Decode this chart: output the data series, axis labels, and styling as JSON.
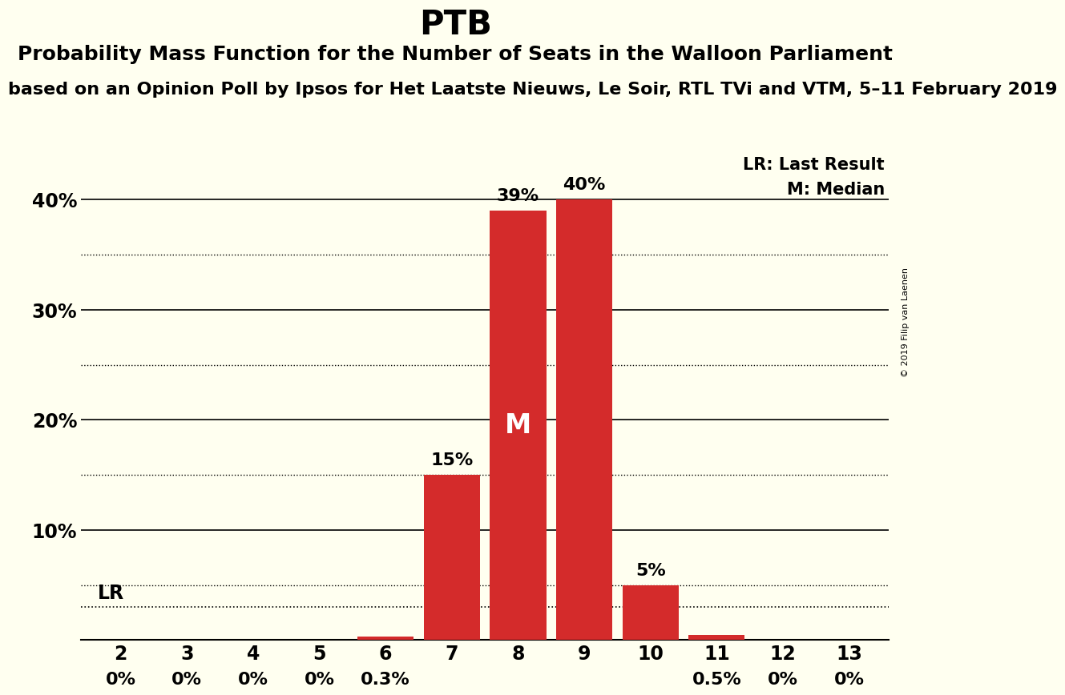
{
  "title": "PTB",
  "subtitle1": "Probability Mass Function for the Number of Seats in the Walloon Parliament",
  "subtitle2": "based on an Opinion Poll by Ipsos for Het Laatste Nieuws, Le Soir, RTL TVi and VTM, 5–11 February 2019",
  "subtitle2_display": "on an Opinion Poll by Ipsos for Het Laatste Nieuws, Le Soir, RTL TVi and VTM, 5–11 Februar",
  "copyright": "© 2019 Filip van Laenen",
  "categories": [
    2,
    3,
    4,
    5,
    6,
    7,
    8,
    9,
    10,
    11,
    12,
    13
  ],
  "values": [
    0.0,
    0.0,
    0.0,
    0.0,
    0.3,
    15.0,
    39.0,
    40.0,
    5.0,
    0.5,
    0.0,
    0.0
  ],
  "labels": [
    "0%",
    "0%",
    "0%",
    "0%",
    "0.3%",
    "15%",
    "39%",
    "40%",
    "5%",
    "0.5%",
    "0%",
    "0%"
  ],
  "bar_color": "#d42b2b",
  "background_color": "#fffff0",
  "median_seat": 8,
  "lr_value": 3.0,
  "lr_label": "LR",
  "median_label": "M",
  "legend_lr": "LR: Last Result",
  "legend_m": "M: Median",
  "ylim": [
    0,
    45
  ],
  "yticks": [
    0,
    10,
    20,
    30,
    40
  ],
  "ytick_labels": [
    "",
    "10%",
    "20%",
    "30%",
    "40%"
  ],
  "solid_yticks": [
    10,
    20,
    30,
    40
  ],
  "dotted_yticks": [
    5,
    15,
    25,
    35
  ],
  "title_fontsize": 30,
  "subtitle1_fontsize": 18,
  "subtitle2_fontsize": 16,
  "tick_fontsize": 17,
  "legend_fontsize": 15,
  "bar_label_fontsize": 16,
  "median_label_fontsize": 24,
  "lr_label_fontsize": 17
}
